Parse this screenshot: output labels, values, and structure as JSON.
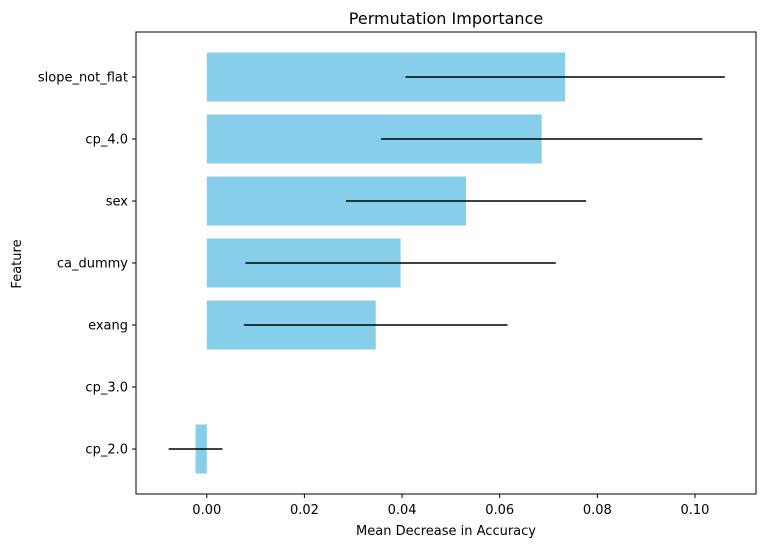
{
  "chart_data": {
    "type": "bar",
    "orientation": "horizontal",
    "title": "Permutation Importance",
    "xlabel": "Mean Decrease in Accuracy",
    "ylabel": "Feature",
    "bar_color": "#87ceeb",
    "errorbar_color": "#000000",
    "xlim": [
      -0.0145,
      0.1125
    ],
    "xticks": [
      0.0,
      0.02,
      0.04,
      0.06,
      0.08,
      0.1
    ],
    "xtick_labels": [
      "0.00",
      "0.02",
      "0.04",
      "0.06",
      "0.08",
      "0.10"
    ],
    "grid": false,
    "categories": [
      "slope_not_flat",
      "cp_4.0",
      "sex",
      "ca_dummy",
      "exang",
      "cp_3.0",
      "cp_2.0"
    ],
    "values": [
      0.0734,
      0.0686,
      0.0531,
      0.0397,
      0.0346,
      0.0,
      -0.0023
    ],
    "errors": [
      0.0327,
      0.0329,
      0.0246,
      0.0318,
      0.027,
      0.0,
      0.0055
    ]
  }
}
